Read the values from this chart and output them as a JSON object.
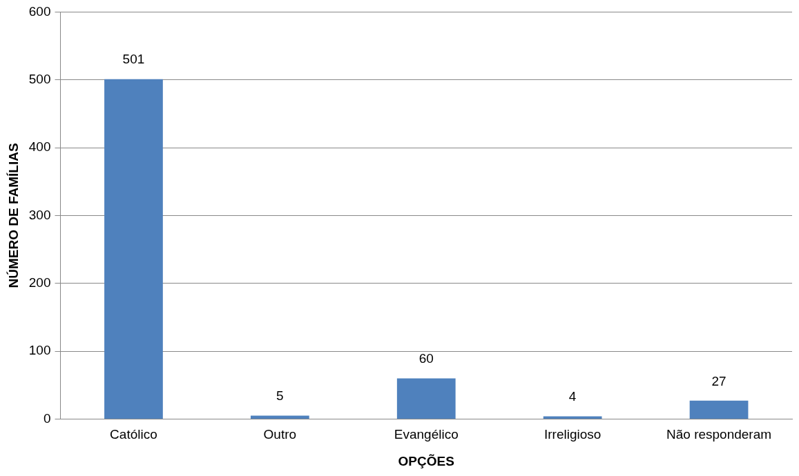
{
  "chart_data": {
    "type": "bar",
    "xlabel": "OPÇÕES",
    "ylabel": "NÚMERO DE FAMÍLIAS",
    "categories": [
      "Católico",
      "Outro",
      "Evangélico",
      "Irreligioso",
      "Não responderam"
    ],
    "values": [
      501,
      5,
      60,
      4,
      27
    ],
    "color": "#4f81bd",
    "ylim": [
      0,
      600
    ],
    "yticks": [
      0,
      100,
      200,
      300,
      400,
      500,
      600
    ],
    "grid": "y",
    "data_labels": true,
    "legend": false
  }
}
